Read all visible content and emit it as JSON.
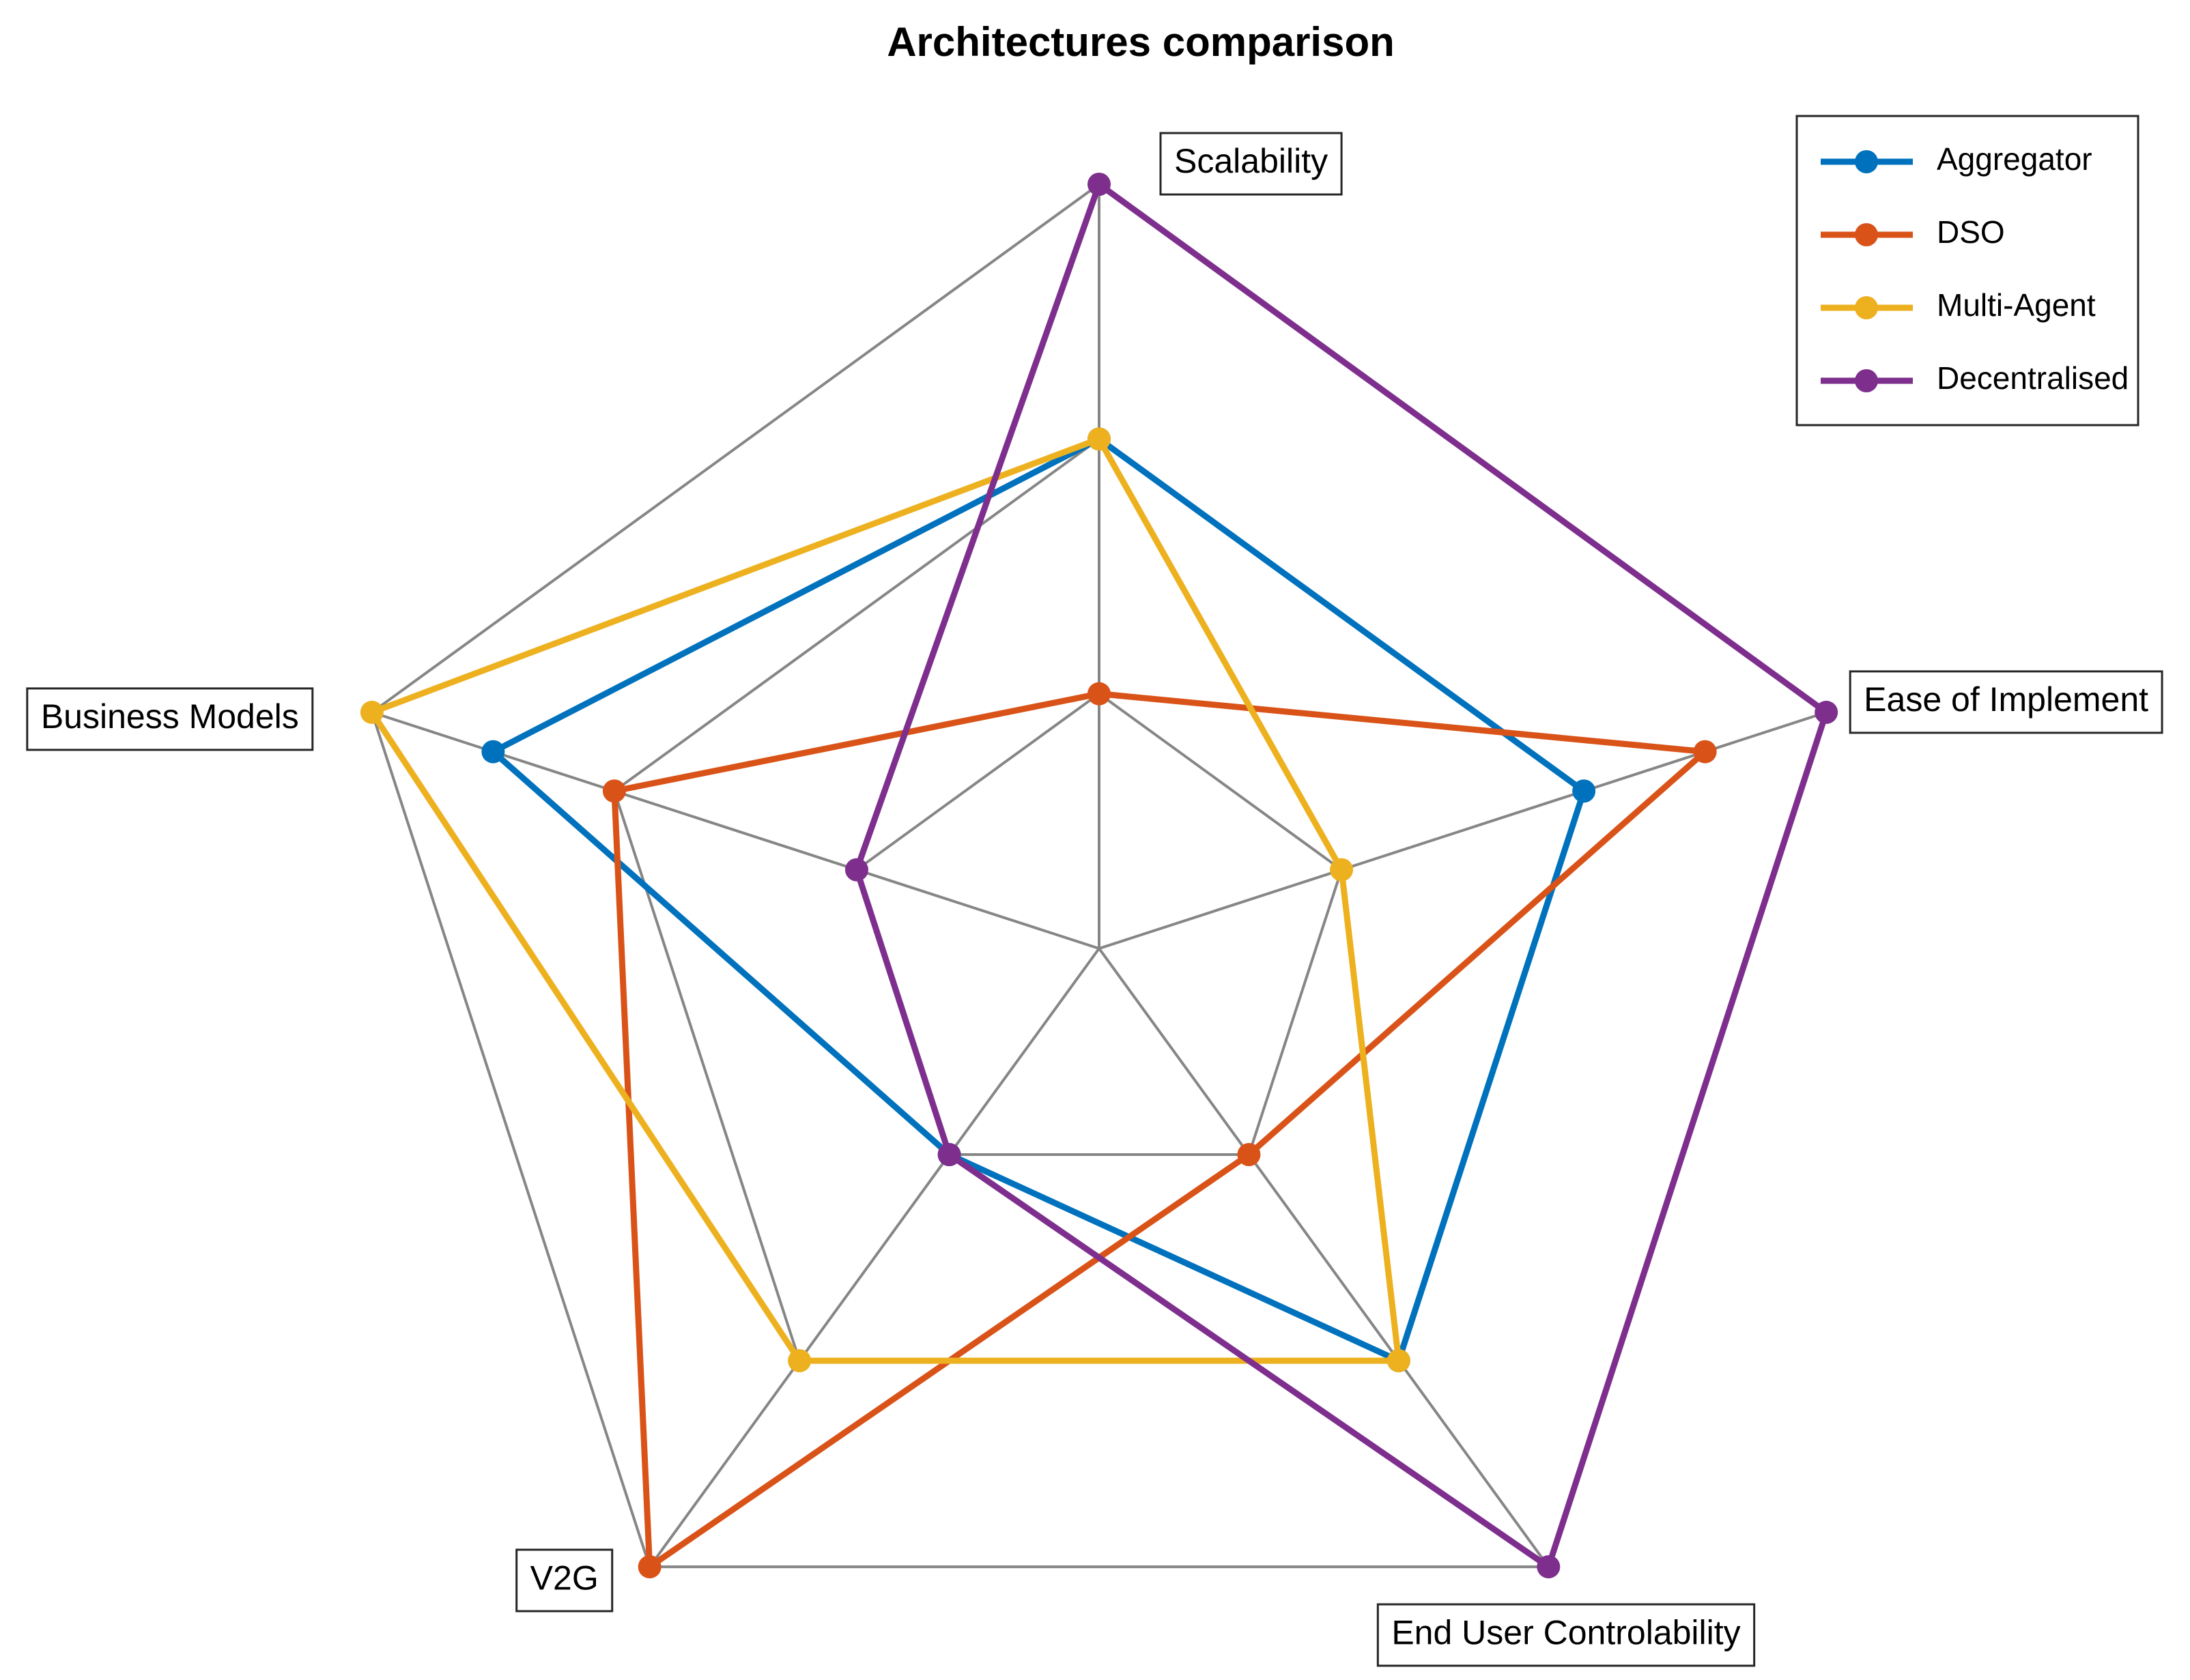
{
  "chart_data": {
    "type": "radar",
    "title": "Architectures comparison",
    "axes": [
      "Scalability",
      "Ease of Implement",
      "End User Controlability",
      "V2G",
      "Business Models"
    ],
    "r_range": [
      0,
      3
    ],
    "rings": 3,
    "grid": true,
    "legend_position": "top-right",
    "series": [
      {
        "name": "Aggregator",
        "color": "#0072BD",
        "values": [
          2,
          2,
          2,
          1,
          2.5
        ]
      },
      {
        "name": "DSO",
        "color": "#D95319",
        "values": [
          1,
          2.5,
          1,
          3,
          2
        ]
      },
      {
        "name": "Multi-Agent",
        "color": "#EDB120",
        "values": [
          2,
          1,
          2,
          2,
          3
        ]
      },
      {
        "name": "Decentralised",
        "color": "#7E2F8E",
        "values": [
          3,
          3,
          3,
          1,
          1
        ]
      }
    ]
  }
}
